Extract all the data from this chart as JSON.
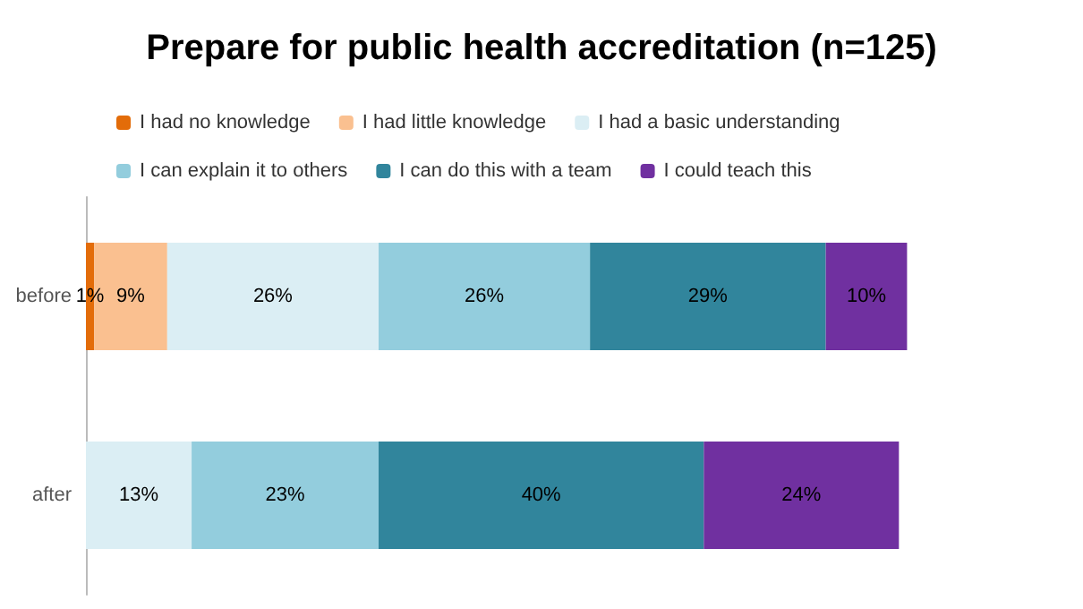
{
  "chart_data": {
    "type": "bar",
    "orientation": "horizontal",
    "stacked": true,
    "title": "Prepare for public health accreditation (n=125)",
    "categories": [
      "before",
      "after"
    ],
    "series": [
      {
        "name": "I had no knowledge",
        "color": "#e36c09",
        "values": [
          1,
          null
        ],
        "value_labels": [
          "1%",
          null
        ]
      },
      {
        "name": "I had little knowledge",
        "color": "#fac090",
        "values": [
          9,
          null
        ],
        "value_labels": [
          "9%",
          null
        ]
      },
      {
        "name": "I had a basic understanding",
        "color": "#dbeef4",
        "values": [
          26,
          13
        ],
        "value_labels": [
          "26%",
          "13%"
        ]
      },
      {
        "name": "I can explain it to others",
        "color": "#93cddd",
        "values": [
          26,
          23
        ],
        "value_labels": [
          "26%",
          "23%"
        ]
      },
      {
        "name": "I can do this with a team",
        "color": "#31859c",
        "values": [
          29,
          40
        ],
        "value_labels": [
          "29%",
          "40%"
        ]
      },
      {
        "name": "I could teach this",
        "color": "#7030a0",
        "values": [
          10,
          24
        ],
        "value_labels": [
          "10%",
          "24%"
        ]
      }
    ],
    "legend": "top",
    "tick_labels": "y"
  }
}
